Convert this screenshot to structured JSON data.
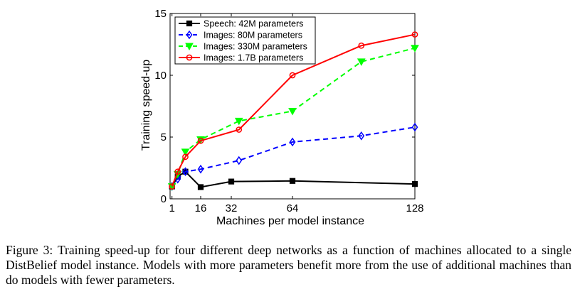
{
  "chart_data": {
    "type": "line",
    "title": "",
    "xlabel": "Machines per model instance",
    "ylabel": "Training speed-up",
    "xlim": [
      0,
      128
    ],
    "ylim": [
      0,
      15
    ],
    "xticks": [
      1,
      16,
      32,
      64,
      128
    ],
    "yticks": [
      0,
      5,
      10,
      15
    ],
    "grid": false,
    "legend_position": "top-left",
    "series": [
      {
        "name": "Speech: 42M parameters",
        "color": "#000000",
        "linestyle": "solid",
        "marker": "square",
        "x": [
          1,
          4,
          8,
          16,
          32,
          64,
          128
        ],
        "y": [
          1.0,
          1.8,
          2.2,
          0.95,
          1.4,
          1.45,
          1.2
        ]
      },
      {
        "name": "Images: 80M parameters",
        "color": "#0000ff",
        "linestyle": "dashed",
        "marker": "diamond",
        "x": [
          1,
          4,
          8,
          16,
          36,
          64,
          100,
          128
        ],
        "y": [
          1.0,
          1.6,
          2.2,
          2.4,
          3.1,
          4.6,
          5.1,
          5.8
        ]
      },
      {
        "name": "Images: 330M parameters",
        "color": "#00ff00",
        "linestyle": "dashed",
        "marker": "triangle-down",
        "x": [
          1,
          4,
          8,
          16,
          36,
          64,
          100,
          128
        ],
        "y": [
          1.0,
          2.0,
          3.8,
          4.8,
          6.3,
          7.1,
          11.1,
          12.2
        ]
      },
      {
        "name": "Images: 1.7B parameters",
        "color": "#ff0000",
        "linestyle": "solid",
        "marker": "circle",
        "x": [
          1,
          4,
          8,
          16,
          36,
          64,
          100,
          128
        ],
        "y": [
          1.0,
          2.2,
          3.4,
          4.7,
          5.6,
          10.0,
          12.4,
          13.3
        ]
      }
    ]
  },
  "caption": "Figure 3: Training speed-up for four different deep networks as a function of machines allocated to a single DistBelief model instance. Models with more parameters benefit more from the use of additional machines than do models with fewer parameters."
}
